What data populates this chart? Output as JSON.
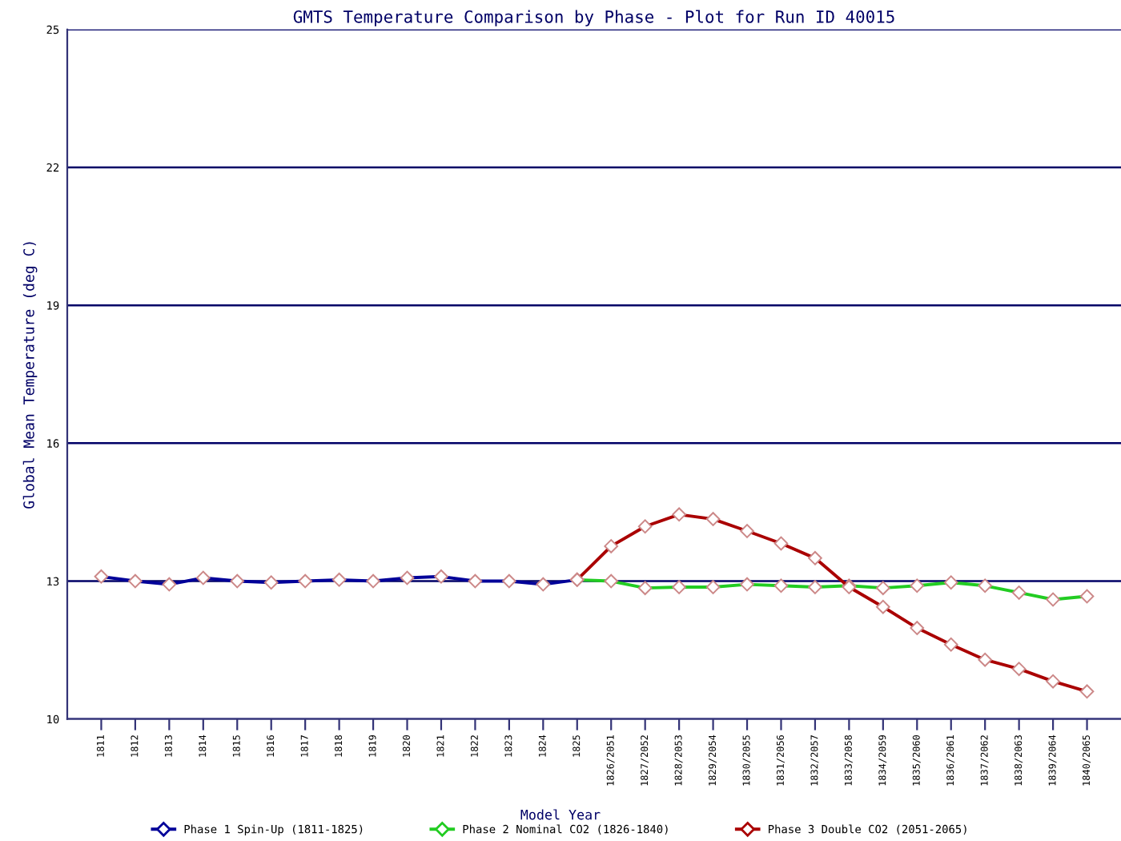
{
  "chart_data": {
    "type": "line",
    "title": "GMTS Temperature Comparison by Phase - Plot for Run ID 40015",
    "xlabel": "Model Year",
    "ylabel": "Global Mean Temperature (deg C)",
    "categories": [
      "1811",
      "1812",
      "1813",
      "1814",
      "1815",
      "1816",
      "1817",
      "1818",
      "1819",
      "1820",
      "1821",
      "1822",
      "1823",
      "1824",
      "1825",
      "1826/2051",
      "1827/2052",
      "1828/2053",
      "1829/2054",
      "1830/2055",
      "1831/2056",
      "1832/2057",
      "1833/2058",
      "1834/2059",
      "1835/2060",
      "1836/2061",
      "1837/2062",
      "1838/2063",
      "1839/2064",
      "1840/2065"
    ],
    "series": [
      {
        "name": "Phase 1 Spin-Up (1811-1825)",
        "color": "#000099",
        "values": [
          13.1,
          13.0,
          12.93,
          13.07,
          13.0,
          12.97,
          13.0,
          13.03,
          13.0,
          13.07,
          13.1,
          13.0,
          13.0,
          12.93,
          13.03,
          null,
          null,
          null,
          null,
          null,
          null,
          null,
          null,
          null,
          null,
          null,
          null,
          null,
          null,
          null
        ]
      },
      {
        "name": "Phase 2 Nominal CO2 (1826-1840)",
        "color": "#22cc22",
        "values": [
          null,
          null,
          null,
          null,
          null,
          null,
          null,
          null,
          null,
          null,
          null,
          null,
          null,
          null,
          13.03,
          13.0,
          12.85,
          12.87,
          12.87,
          12.93,
          12.9,
          12.87,
          12.9,
          12.85,
          12.9,
          12.97,
          12.9,
          12.75,
          12.6,
          12.67
        ]
      },
      {
        "name": "Phase 3 Double CO2 (2051-2065)",
        "color": "#aa0000",
        "values": [
          null,
          null,
          null,
          null,
          null,
          null,
          null,
          null,
          null,
          null,
          null,
          null,
          null,
          null,
          13.03,
          13.76,
          14.19,
          14.45,
          14.35,
          14.09,
          13.82,
          13.5,
          12.87,
          12.44,
          11.98,
          11.62,
          11.29,
          11.09,
          10.82,
          10.6
        ]
      }
    ],
    "ylim": [
      10,
      25
    ],
    "yticks": [
      10,
      13,
      16,
      19,
      22,
      25
    ],
    "grid": "y",
    "marker": "diamond",
    "line_style": "solid",
    "legend": "bottom"
  }
}
